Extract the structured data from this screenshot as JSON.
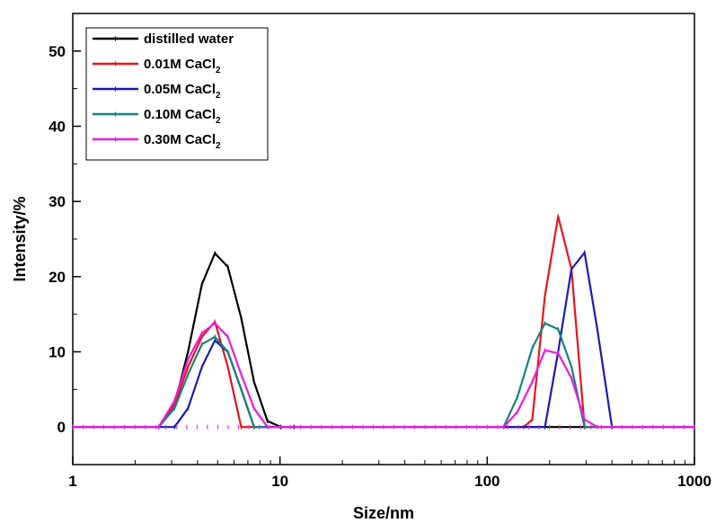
{
  "chart_data": {
    "type": "line",
    "xlabel": "Size/nm",
    "ylabel": "Intensity/%",
    "x_scale": "log",
    "xlim": [
      1,
      1000
    ],
    "ylim": [
      -5,
      55
    ],
    "x_ticks": [
      1,
      10,
      100,
      1000
    ],
    "x_tick_labels": [
      "1",
      "10",
      "100",
      "1000"
    ],
    "y_ticks": [
      0,
      10,
      20,
      30,
      40,
      50
    ],
    "y_tick_labels": [
      "0",
      "10",
      "20",
      "30",
      "40",
      "50"
    ],
    "grid": false,
    "legend_position": "top-left",
    "series": [
      {
        "name": "distilled water",
        "legend_main": "distilled water",
        "legend_sub": "",
        "color": "#000000",
        "x": [
          1,
          2.6,
          3.1,
          3.6,
          4.2,
          4.85,
          5.6,
          6.5,
          7.5,
          8.7,
          10.1,
          11.7,
          1000
        ],
        "y": [
          0,
          0,
          3,
          10,
          19,
          23.1,
          21.3,
          14.5,
          6,
          0.8,
          0,
          0,
          0
        ]
      },
      {
        "name": "0.01M CaCl2",
        "legend_main": "0.01M CaCl",
        "legend_sub": "2",
        "color": "#e8141a",
        "x": [
          1,
          2.6,
          3.1,
          3.6,
          4.2,
          4.85,
          5.6,
          6.5,
          150,
          165,
          190,
          220,
          255,
          295,
          1000
        ],
        "y": [
          0,
          0,
          3,
          8,
          12,
          14,
          8,
          0,
          0,
          1,
          17.5,
          28,
          21,
          0,
          0
        ]
      },
      {
        "name": "0.05M CaCl2",
        "legend_main": "0.05M CaCl",
        "legend_sub": "2",
        "color": "#1a1ab8",
        "x": [
          1,
          3.1,
          3.6,
          4.2,
          4.85,
          5.6,
          6.5,
          7.5,
          190,
          220,
          255,
          295,
          340,
          400,
          1000
        ],
        "y": [
          0,
          0,
          2.5,
          8,
          11.5,
          10,
          5,
          0,
          0,
          10,
          21,
          23.2,
          13,
          0,
          0
        ]
      },
      {
        "name": "0.10M CaCl2",
        "legend_main": "0.10M CaCl",
        "legend_sub": "2",
        "color": "#17807e",
        "x": [
          1,
          2.6,
          3.1,
          3.6,
          4.2,
          4.85,
          5.6,
          6.5,
          7.5,
          120,
          140,
          165,
          190,
          220,
          255,
          295,
          1000
        ],
        "y": [
          0,
          0,
          2.5,
          7,
          11,
          12,
          10,
          5,
          0,
          0,
          4,
          10.5,
          13.8,
          13,
          8,
          0,
          0
        ]
      },
      {
        "name": "0.30M CaCl2",
        "legend_main": "0.30M CaCl",
        "legend_sub": "2",
        "color": "#e81ce0",
        "x": [
          1,
          2.6,
          3.1,
          3.6,
          4.2,
          4.85,
          5.6,
          6.5,
          7.5,
          8.7,
          120,
          140,
          165,
          190,
          220,
          255,
          295,
          340,
          1000
        ],
        "y": [
          0,
          0,
          3.5,
          9,
          12.5,
          13.8,
          12,
          7,
          2.5,
          0,
          0,
          2,
          6,
          10.2,
          9.8,
          6.5,
          1,
          0,
          0
        ]
      }
    ]
  }
}
